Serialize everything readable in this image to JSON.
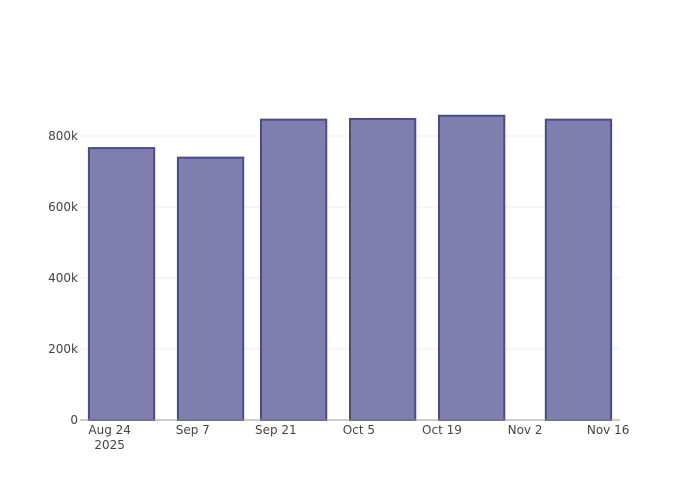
{
  "chart_data": {
    "type": "bar",
    "title": "",
    "xlabel": "",
    "ylabel": "",
    "x": [
      "2025-08-26",
      "2025-09-10",
      "2025-09-24",
      "2025-10-09",
      "2025-10-24",
      "2025-11-11"
    ],
    "values": [
      766000,
      739000,
      846000,
      848000,
      857000,
      846000
    ],
    "bar_width_days": 11,
    "xlim": [
      "2025-08-19",
      "2025-11-18"
    ],
    "ylim": [
      0,
      1000000
    ],
    "x_ticks": [
      {
        "date": "2025-08-24",
        "label": "Aug 24",
        "sublabel": "2025"
      },
      {
        "date": "2025-09-07",
        "label": "Sep 7"
      },
      {
        "date": "2025-09-21",
        "label": "Sep 21"
      },
      {
        "date": "2025-10-05",
        "label": "Oct 5"
      },
      {
        "date": "2025-10-19",
        "label": "Oct 19"
      },
      {
        "date": "2025-11-02",
        "label": "Nov 2"
      },
      {
        "date": "2025-11-16",
        "label": "Nov 16"
      }
    ],
    "y_ticks": [
      {
        "value": 0,
        "label": "0"
      },
      {
        "value": 200000,
        "label": "200k"
      },
      {
        "value": 400000,
        "label": "400k"
      },
      {
        "value": 600000,
        "label": "600k"
      },
      {
        "value": 800000,
        "label": "800k"
      }
    ],
    "grid": true,
    "colors": {
      "bar_fill": "#7f7fae",
      "bar_stroke": "#4b4b8c",
      "grid": "#eeeeee",
      "axis": "#999999"
    }
  }
}
